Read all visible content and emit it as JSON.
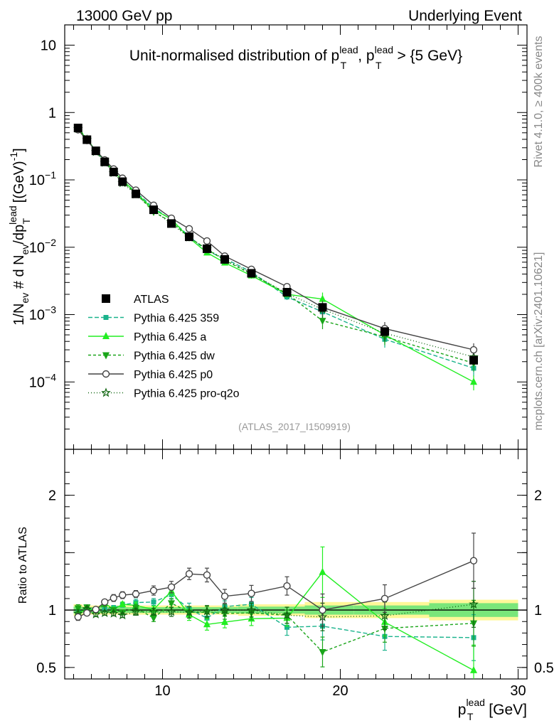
{
  "header": {
    "left": "13000 GeV pp",
    "right": "Underlying Event"
  },
  "side_labels": {
    "rivet": "Rivet 4.1.0, ≥ 400k events",
    "mcplots": "mcplots.cern.ch [arXiv:2401.10621]"
  },
  "watermark": "(ATLAS_2017_I1509919)",
  "colors": {
    "atlas": "#000000",
    "p359": "#1ab38c",
    "a": "#22ee22",
    "dw": "#1aa51a",
    "p0": "#444444",
    "proq2o": "#116611",
    "band_outer": "#fff799",
    "band_inner": "#7ae67a"
  },
  "chart_data": [
    {
      "type": "line",
      "title": "Unit-normalised distribution of pT lead, pT lead > {5 GeV}",
      "title_parts": {
        "prefix": "Unit-normalised distribution of p",
        "sup": "lead",
        "sub": "T",
        "mid": ", p",
        "suffix": " > {5 GeV}"
      },
      "ylabel": "1/Nev # d Nev/dpT lead [(GeV)-1]",
      "ylabel_parts": {
        "a": "1/N",
        "a_sub": "ev",
        "b": " # d N",
        "b_sub": "ev",
        "c": "/dp",
        "c_sub": "T",
        "c_sup": "lead",
        "d": " [(GeV)",
        "d_sup": "-1",
        "e": "]"
      },
      "yscale": "log",
      "ylim": [
        1e-05,
        20
      ],
      "xlim": [
        4.5,
        30.5
      ],
      "yticks": [
        {
          "v": 10,
          "base": "10",
          "exp": ""
        },
        {
          "v": 1,
          "base": "1",
          "exp": ""
        },
        {
          "v": 0.1,
          "base": "10",
          "exp": "−1"
        },
        {
          "v": 0.01,
          "base": "10",
          "exp": "−2"
        },
        {
          "v": 0.001,
          "base": "10",
          "exp": "−3"
        },
        {
          "v": 0.0001,
          "base": "10",
          "exp": "−4"
        }
      ],
      "legend_position": "lower-left",
      "x": [
        5.25,
        5.75,
        6.25,
        6.75,
        7.25,
        7.75,
        8.5,
        9.5,
        10.5,
        11.5,
        12.5,
        13.5,
        15,
        17,
        19,
        22.5,
        27.5
      ],
      "series": [
        {
          "name": "ATLAS",
          "key": "atlas",
          "marker": "square",
          "dash": "none",
          "values": [
            0.59,
            0.395,
            0.27,
            0.185,
            0.131,
            0.094,
            0.062,
            0.036,
            0.0225,
            0.0143,
            0.0095,
            0.0066,
            0.0041,
            0.00215,
            0.00128,
            0.00056,
            0.00021
          ]
        },
        {
          "name": "Pythia 6.425 359",
          "key": "p359",
          "marker": "smallsquare",
          "dash": "6,3",
          "values": [
            0.576,
            0.402,
            0.269,
            0.187,
            0.134,
            0.098,
            0.066,
            0.0385,
            0.0255,
            0.0145,
            0.0088,
            0.0068,
            0.0043,
            0.00183,
            0.0011,
            0.00043,
            0.00016
          ]
        },
        {
          "name": "Pythia 6.425 a",
          "key": "a",
          "marker": "triangle",
          "dash": "none",
          "values": [
            0.578,
            0.398,
            0.271,
            0.196,
            0.132,
            0.099,
            0.0645,
            0.0362,
            0.0262,
            0.0137,
            0.0083,
            0.0059,
            0.0038,
            0.002,
            0.0017,
            0.0005,
            0.0001
          ]
        },
        {
          "name": "Pythia 6.425 dw",
          "key": "dw",
          "marker": "triangledown",
          "dash": "4,3",
          "values": [
            0.6,
            0.405,
            0.268,
            0.194,
            0.131,
            0.092,
            0.0635,
            0.0335,
            0.0238,
            0.014,
            0.0093,
            0.0064,
            0.004,
            0.00205,
            0.00081,
            0.00047,
            0.00019
          ]
        },
        {
          "name": "Pythia 6.425 p0",
          "key": "p0",
          "marker": "circle",
          "dash": "none",
          "values": [
            0.555,
            0.385,
            0.272,
            0.198,
            0.145,
            0.106,
            0.0705,
            0.042,
            0.027,
            0.0188,
            0.0124,
            0.0074,
            0.0047,
            0.0026,
            0.00128,
            0.00062,
            0.0003
          ]
        },
        {
          "name": "Pythia 6.425 pro-q2o",
          "key": "proq2o",
          "marker": "star",
          "dash": "1,3",
          "values": [
            0.572,
            0.398,
            0.26,
            0.18,
            0.127,
            0.09,
            0.061,
            0.0355,
            0.0222,
            0.014,
            0.0094,
            0.0066,
            0.0041,
            0.00205,
            0.0012,
            0.00053,
            0.000235
          ]
        }
      ]
    },
    {
      "type": "line",
      "title": "",
      "ylabel": "Ratio to ATLAS",
      "xlabel": "pT lead [GeV]",
      "xlabel_parts": {
        "a": "p",
        "a_sub": "T",
        "a_sup": "lead",
        "b": " [GeV]"
      },
      "ylim": [
        0.4,
        2.4
      ],
      "xlim": [
        4.5,
        30.5
      ],
      "xticks": [
        10,
        20,
        30
      ],
      "yticks": [
        0.5,
        1,
        2
      ],
      "reference_line": 1,
      "band_inner_halfwidth": [
        0.03,
        0.025,
        0.025,
        0.025,
        0.025,
        0.025,
        0.025,
        0.025,
        0.025,
        0.025,
        0.025,
        0.025,
        0.03,
        0.03,
        0.04,
        0.04,
        0.06
      ],
      "band_outer_halfwidth": [
        0.05,
        0.04,
        0.04,
        0.04,
        0.04,
        0.04,
        0.04,
        0.04,
        0.04,
        0.04,
        0.04,
        0.04,
        0.05,
        0.05,
        0.07,
        0.07,
        0.09
      ],
      "x": [
        5.25,
        5.75,
        6.25,
        6.75,
        7.25,
        7.75,
        8.5,
        9.5,
        10.5,
        11.5,
        12.5,
        13.5,
        15,
        17,
        19,
        22.5,
        27.5
      ],
      "series": [
        {
          "name": "Pythia 6.425 359",
          "key": "p359",
          "marker": "smallsquare",
          "dash": "6,3",
          "values": [
            0.976,
            1.02,
            0.995,
            1.01,
            1.02,
            1.045,
            1.065,
            1.07,
            1.135,
            1.01,
            0.93,
            1.03,
            1.05,
            0.85,
            0.86,
            0.77,
            0.76
          ],
          "err": [
            0.03,
            0.02,
            0.02,
            0.02,
            0.02,
            0.02,
            0.03,
            0.03,
            0.04,
            0.05,
            0.05,
            0.05,
            0.06,
            0.07,
            0.12,
            0.12,
            0.2
          ]
        },
        {
          "name": "Pythia 6.425 a",
          "key": "a",
          "marker": "triangle",
          "dash": "none",
          "values": [
            0.98,
            1.005,
            1.003,
            1.06,
            1.005,
            1.05,
            1.04,
            1.005,
            1.165,
            0.96,
            0.875,
            0.895,
            0.925,
            0.93,
            1.33,
            0.895,
            0.475
          ],
          "err": [
            0.03,
            0.02,
            0.02,
            0.02,
            0.02,
            0.02,
            0.03,
            0.03,
            0.04,
            0.05,
            0.05,
            0.05,
            0.06,
            0.07,
            0.22,
            0.12,
            0.22
          ]
        },
        {
          "name": "Pythia 6.425 dw",
          "key": "dw",
          "marker": "triangledown",
          "dash": "4,3",
          "values": [
            1.017,
            1.025,
            0.993,
            1.05,
            1.0,
            0.98,
            1.02,
            0.93,
            1.06,
            0.98,
            0.98,
            0.97,
            0.975,
            0.955,
            0.635,
            0.84,
            0.885
          ],
          "err": [
            0.03,
            0.02,
            0.02,
            0.02,
            0.02,
            0.02,
            0.03,
            0.03,
            0.04,
            0.05,
            0.05,
            0.05,
            0.06,
            0.07,
            0.13,
            0.12,
            0.2
          ]
        },
        {
          "name": "Pythia 6.425 p0",
          "key": "p0",
          "marker": "circle",
          "dash": "none",
          "values": [
            0.94,
            0.975,
            1.005,
            1.07,
            1.105,
            1.13,
            1.14,
            1.17,
            1.2,
            1.315,
            1.305,
            1.12,
            1.145,
            1.21,
            1.0,
            1.1,
            1.43
          ],
          "err": [
            0.03,
            0.02,
            0.02,
            0.02,
            0.03,
            0.03,
            0.03,
            0.04,
            0.05,
            0.05,
            0.06,
            0.06,
            0.07,
            0.08,
            0.14,
            0.12,
            0.24
          ]
        },
        {
          "name": "Pythia 6.425 pro-q2o",
          "key": "proq2o",
          "marker": "star",
          "dash": "1,3",
          "values": [
            0.97,
            1.007,
            0.963,
            0.975,
            0.97,
            0.955,
            0.985,
            0.985,
            0.985,
            0.98,
            0.99,
            1.0,
            1.0,
            0.955,
            0.94,
            0.95,
            1.05
          ],
          "err": [
            0.03,
            0.02,
            0.02,
            0.02,
            0.02,
            0.02,
            0.03,
            0.03,
            0.04,
            0.05,
            0.05,
            0.05,
            0.06,
            0.07,
            0.12,
            0.12,
            0.2
          ]
        }
      ]
    }
  ]
}
